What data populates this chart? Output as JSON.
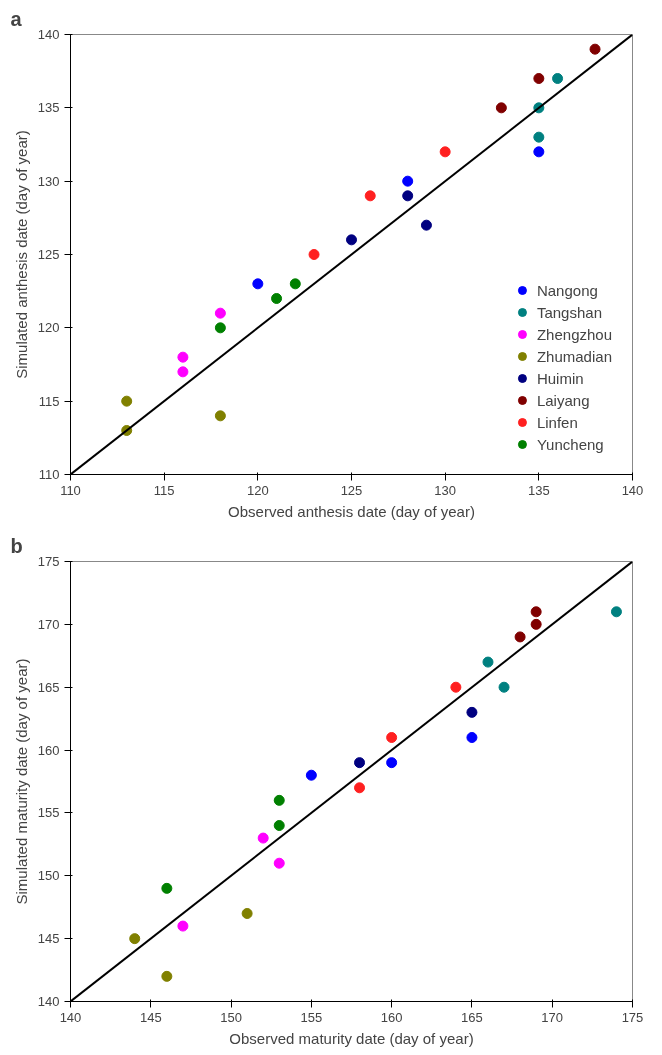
{
  "chart_data": [
    {
      "type": "scatter",
      "title": "a",
      "xlabel": "Observed anthesis date (day of year)",
      "ylabel": "Simulated anthesis date (day of year)",
      "xlim": [
        110,
        140
      ],
      "ylim": [
        110,
        140
      ],
      "xticks": [
        110,
        115,
        120,
        125,
        130,
        135,
        140
      ],
      "yticks": [
        110,
        115,
        120,
        125,
        130,
        135,
        140
      ],
      "grid": false,
      "legend": "bottom right",
      "marker": "circle",
      "series": [
        {
          "name": "Nangong",
          "color": "#0000ff",
          "x": [
            120,
            128,
            135
          ],
          "values": [
            123,
            130,
            132
          ]
        },
        {
          "name": "Tangshan",
          "color": "#008080",
          "x": [
            136,
            135,
            135
          ],
          "values": [
            137,
            135,
            133
          ]
        },
        {
          "name": "Zhengzhou",
          "color": "#ff00ff",
          "x": [
            116,
            116,
            118
          ],
          "values": [
            118,
            117,
            121
          ]
        },
        {
          "name": "Zhumadian",
          "color": "#808000",
          "x": [
            113,
            113,
            118
          ],
          "values": [
            115,
            113,
            114
          ]
        },
        {
          "name": "Huimin",
          "color": "#000080",
          "x": [
            125,
            128,
            129
          ],
          "values": [
            126,
            129,
            127
          ]
        },
        {
          "name": "Laiyang",
          "color": "#800000",
          "x": [
            133,
            135,
            138
          ],
          "values": [
            135,
            137,
            139
          ]
        },
        {
          "name": "Linfen",
          "color": "#ff2020",
          "x": [
            123,
            126,
            130
          ],
          "values": [
            125,
            129,
            132
          ]
        },
        {
          "name": "Yuncheng",
          "color": "#008000",
          "x": [
            118,
            121,
            122
          ],
          "values": [
            120,
            122,
            123
          ]
        },
        {
          "type": "line",
          "marker": "none",
          "color": "#000000",
          "x": [
            110,
            140
          ],
          "values": [
            110,
            140
          ]
        }
      ]
    },
    {
      "type": "scatter",
      "title": "b",
      "xlabel": "Observed maturity date (day of year)",
      "ylabel": "Simulated maturity date (day of year)",
      "xlim": [
        140,
        175
      ],
      "ylim": [
        140,
        175
      ],
      "xticks": [
        140,
        145,
        150,
        155,
        160,
        165,
        170,
        175
      ],
      "yticks": [
        140,
        145,
        150,
        155,
        160,
        165,
        170,
        175
      ],
      "grid": false,
      "marker": "circle",
      "series": [
        {
          "color": "#0000ff",
          "x": [
            155,
            160,
            165
          ],
          "values": [
            158,
            159,
            161
          ]
        },
        {
          "color": "#008080",
          "x": [
            166,
            167,
            174
          ],
          "values": [
            167,
            165,
            171
          ]
        },
        {
          "color": "#ff00ff",
          "x": [
            147,
            152,
            153
          ],
          "values": [
            146,
            153,
            151
          ]
        },
        {
          "color": "#808000",
          "x": [
            144,
            146,
            151
          ],
          "values": [
            145,
            142,
            147
          ]
        },
        {
          "color": "#000080",
          "x": [
            158,
            165
          ],
          "values": [
            159,
            163
          ]
        },
        {
          "color": "#800000",
          "x": [
            168,
            169,
            169
          ],
          "values": [
            169,
            170,
            171
          ]
        },
        {
          "color": "#ff2020",
          "x": [
            158,
            160,
            164
          ],
          "values": [
            157,
            161,
            165
          ]
        },
        {
          "color": "#008000",
          "x": [
            146,
            153,
            153
          ],
          "values": [
            149,
            154,
            156
          ]
        },
        {
          "type": "line",
          "marker": "none",
          "color": "#000000",
          "x": [
            140,
            175
          ],
          "values": [
            140,
            175
          ]
        }
      ]
    }
  ]
}
